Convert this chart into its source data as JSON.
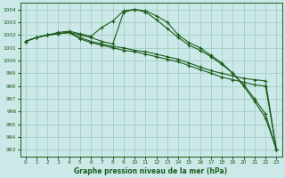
{
  "xlabel": "Graphe pression niveau de la mer (hPa)",
  "ylim": [
    992.5,
    1004.5
  ],
  "xlim": [
    -0.5,
    23.5
  ],
  "yticks": [
    993,
    994,
    995,
    996,
    997,
    998,
    999,
    1000,
    1001,
    1002,
    1003,
    1004
  ],
  "xticks": [
    0,
    1,
    2,
    3,
    4,
    5,
    6,
    7,
    8,
    9,
    10,
    11,
    12,
    13,
    14,
    15,
    16,
    17,
    18,
    19,
    20,
    21,
    22,
    23
  ],
  "background_color": "#cce8e8",
  "grid_color": "#99ccbb",
  "line_color": "#1a5c1a",
  "series": [
    [
      1001.5,
      1001.8,
      1002.0,
      1002.2,
      1002.3,
      1002.1,
      1001.9,
      1002.6,
      1003.1,
      1003.9,
      1004.0,
      1003.9,
      1003.5,
      1003.0,
      1002.0,
      1001.4,
      1001.0,
      1000.4,
      999.8,
      999.0,
      998.1,
      997.0,
      995.8,
      993.0
    ],
    [
      1001.5,
      1001.8,
      1002.0,
      1002.1,
      1002.2,
      1002.0,
      1001.8,
      1001.5,
      1001.3,
      1003.8,
      1004.0,
      1003.8,
      1003.2,
      1002.5,
      1001.8,
      1001.2,
      1000.8,
      1000.3,
      999.7,
      999.0,
      998.0,
      996.8,
      995.5,
      993.0
    ],
    [
      1001.5,
      1001.8,
      1002.0,
      1002.1,
      1002.2,
      1001.8,
      1001.5,
      1001.3,
      1001.1,
      1001.0,
      1000.8,
      1000.7,
      1000.5,
      1000.3,
      1000.1,
      999.8,
      999.5,
      999.2,
      999.0,
      998.8,
      998.6,
      998.5,
      998.4,
      993.0
    ],
    [
      1001.5,
      1001.8,
      1002.0,
      1002.1,
      1002.2,
      1001.7,
      1001.4,
      1001.2,
      1001.0,
      1000.8,
      1000.7,
      1000.5,
      1000.3,
      1000.1,
      999.9,
      999.6,
      999.3,
      999.0,
      998.7,
      998.5,
      998.3,
      998.1,
      998.0,
      993.0
    ]
  ]
}
